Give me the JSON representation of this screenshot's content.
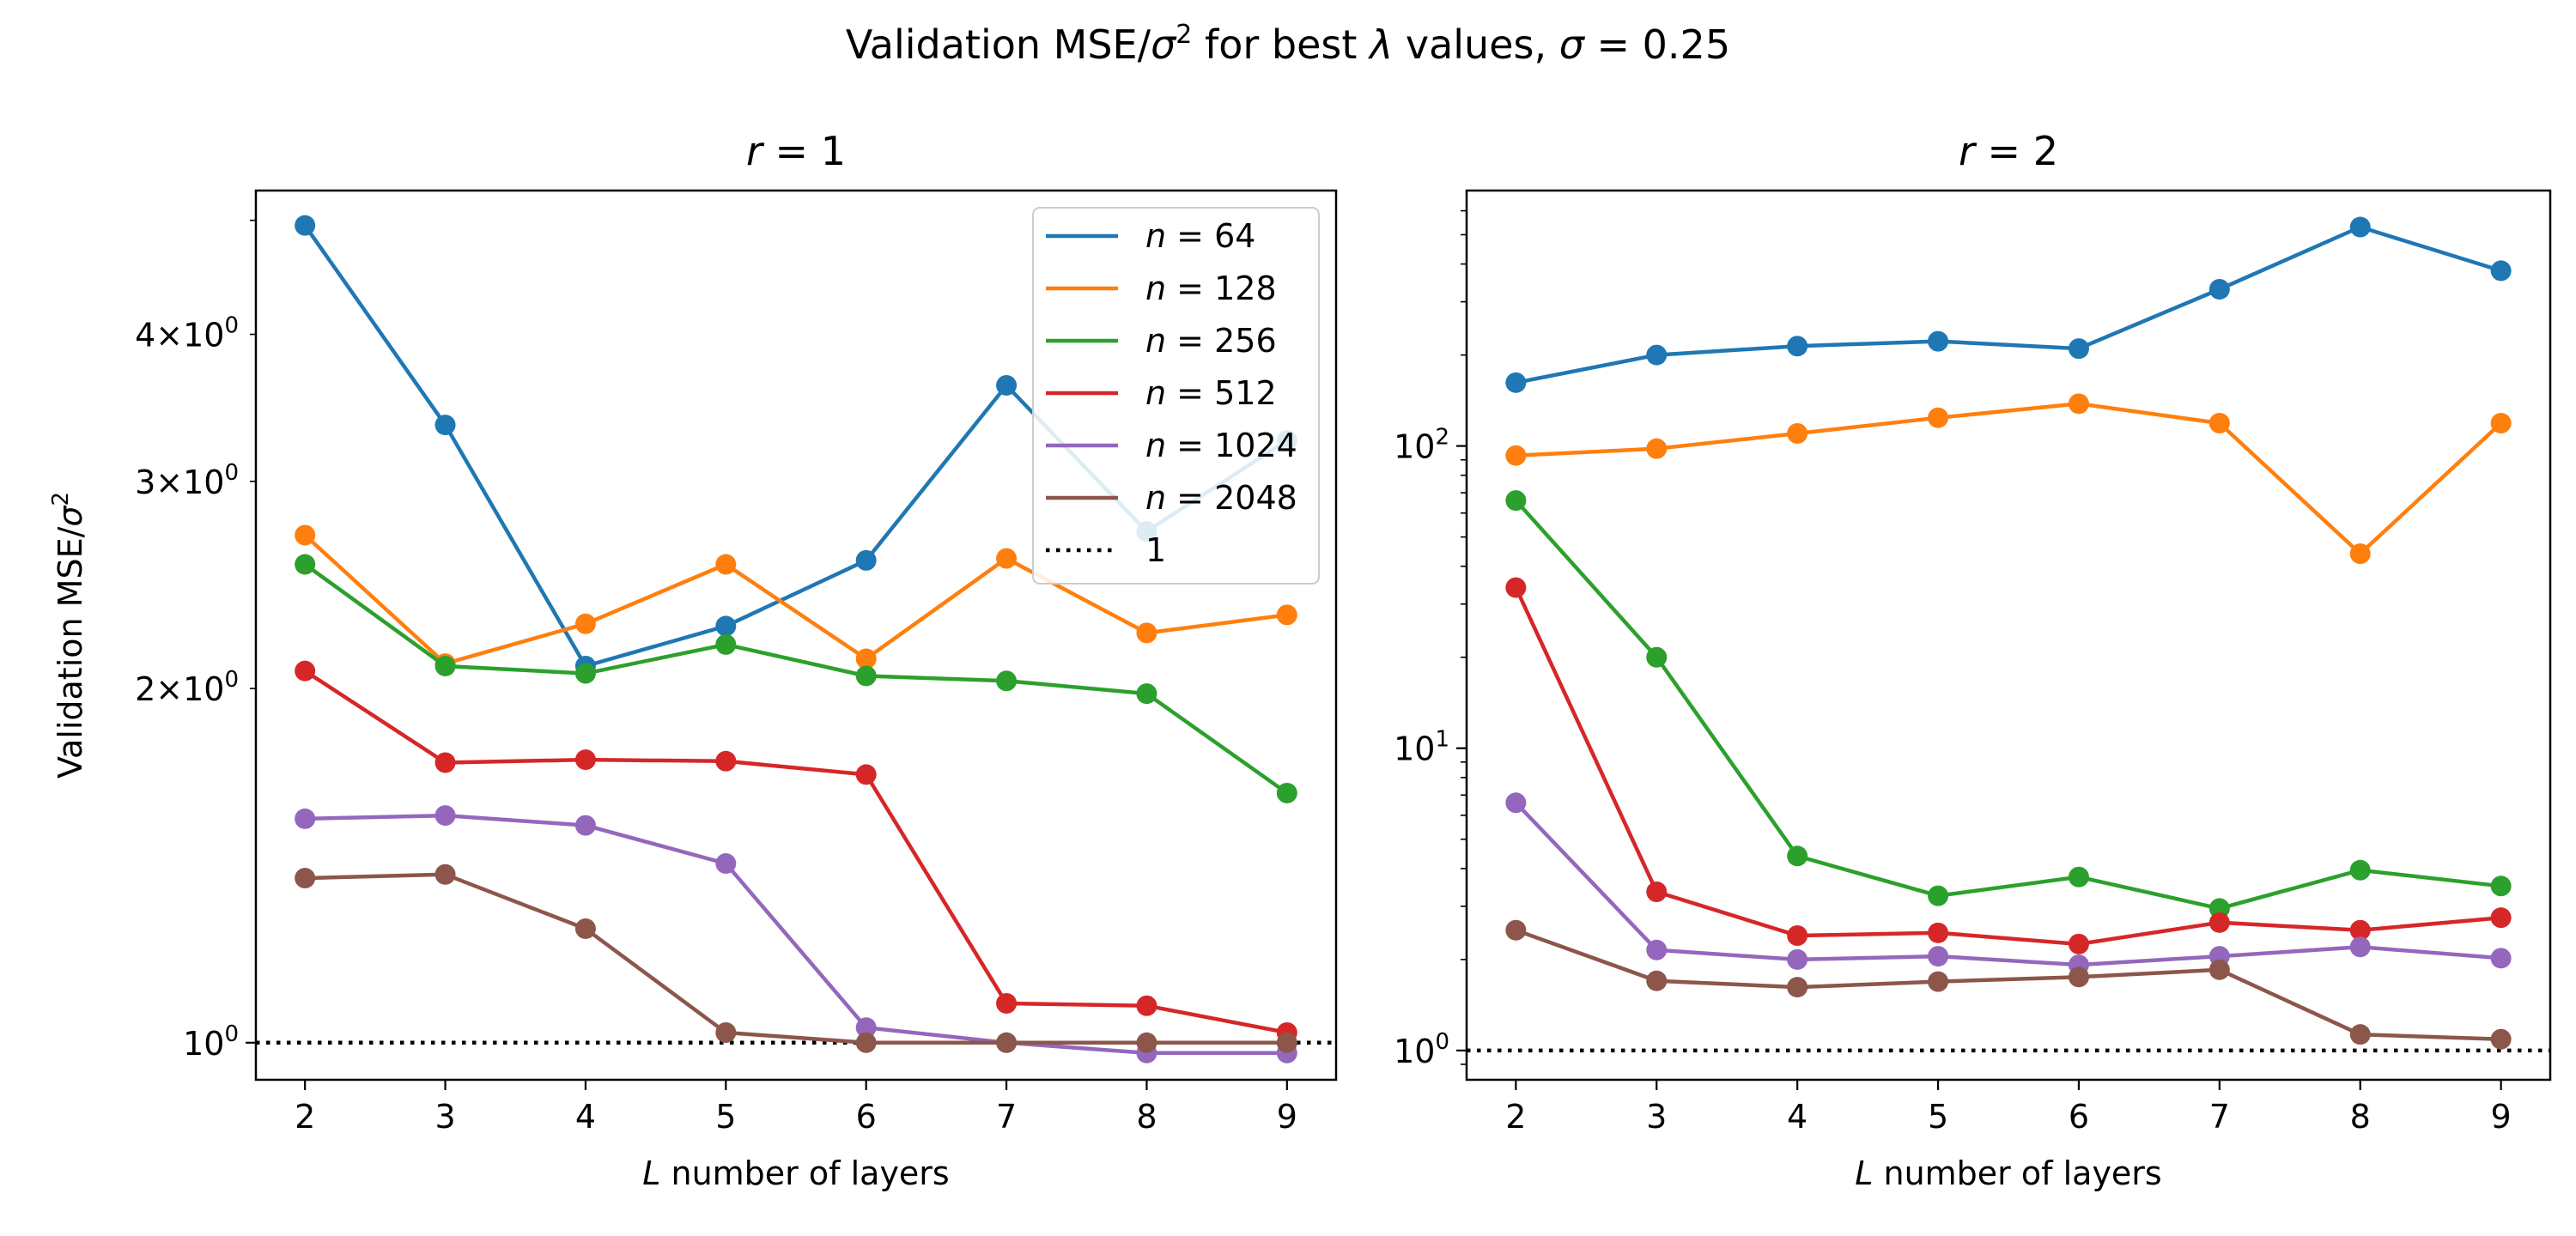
{
  "figure": {
    "suptitle": {
      "pre": "Validation MSE/",
      "sigma": "σ",
      "sq": "2",
      "mid": " for best ",
      "lambda": "λ",
      "post": " values, ",
      "sigma2": "σ",
      "eq": " = 0.25"
    },
    "ylabel": {
      "pre": "Validation MSE/",
      "sigma": "σ",
      "sq": "2"
    }
  },
  "legend": {
    "entries": [
      "n = 64",
      "n = 128",
      "n = 256",
      "n = 512",
      "n = 1024",
      "n = 2048",
      "1"
    ]
  },
  "chart_data": [
    {
      "type": "line",
      "title": "r = 1",
      "xlabel": "L number of layers",
      "ylabel": "Validation MSE/σ²",
      "yscale": "log",
      "x": [
        2,
        3,
        4,
        5,
        6,
        7,
        8,
        9
      ],
      "xlim": [
        1.65,
        9.35
      ],
      "ylim": [
        0.93,
        5.3
      ],
      "major_yticks": [
        {
          "value": 1,
          "label": "10^0"
        }
      ],
      "minor_yticks": [
        {
          "value": 2,
          "label": "2×10^0"
        },
        {
          "value": 3,
          "label": "3×10^0"
        },
        {
          "value": 4,
          "label": "4×10^0"
        }
      ],
      "yticks_unlabeled": [
        5
      ],
      "series": [
        {
          "name": "n = 64",
          "color": "#1f77b4",
          "values": [
            4.95,
            3.35,
            2.09,
            2.26,
            2.57,
            3.62,
            2.72,
            3.25
          ]
        },
        {
          "name": "n = 128",
          "color": "#ff7f0e",
          "values": [
            2.7,
            2.1,
            2.27,
            2.55,
            2.12,
            2.58,
            2.23,
            2.31
          ]
        },
        {
          "name": "n = 256",
          "color": "#2ca02c",
          "values": [
            2.55,
            2.09,
            2.06,
            2.18,
            2.05,
            2.03,
            1.98,
            1.63
          ]
        },
        {
          "name": "n = 512",
          "color": "#d62728",
          "values": [
            2.07,
            1.73,
            1.74,
            1.735,
            1.69,
            1.08,
            1.075,
            1.02
          ]
        },
        {
          "name": "n = 1024",
          "color": "#9467bd",
          "values": [
            1.55,
            1.56,
            1.53,
            1.42,
            1.03,
            1.0,
            0.98,
            0.98
          ]
        },
        {
          "name": "n = 2048",
          "color": "#8c564b",
          "values": [
            1.38,
            1.39,
            1.25,
            1.02,
            1.0,
            1.0,
            1.0,
            1.0
          ]
        }
      ],
      "reference_line": {
        "name": "1",
        "value": 1,
        "style": "dotted",
        "color": "#000000"
      },
      "legend_position": "top-right",
      "grid": false
    },
    {
      "type": "line",
      "title": "r = 2",
      "xlabel": "L number of layers",
      "yscale": "log",
      "x": [
        2,
        3,
        4,
        5,
        6,
        7,
        8,
        9
      ],
      "xlim": [
        1.65,
        9.35
      ],
      "ylim": [
        0.8,
        700
      ],
      "major_yticks": [
        {
          "value": 1,
          "label": "10^0"
        },
        {
          "value": 10,
          "label": "10^1"
        },
        {
          "value": 100,
          "label": "10^2"
        }
      ],
      "series": [
        {
          "name": "n = 64",
          "color": "#1f77b4",
          "values": [
            162,
            200,
            214,
            222,
            210,
            330,
            530,
            380
          ]
        },
        {
          "name": "n = 128",
          "color": "#ff7f0e",
          "values": [
            93,
            98,
            110,
            124,
            138,
            119,
            44,
            119
          ]
        },
        {
          "name": "n = 256",
          "color": "#2ca02c",
          "values": [
            66,
            20,
            4.4,
            3.25,
            3.75,
            2.95,
            3.95,
            3.5
          ]
        },
        {
          "name": "n = 512",
          "color": "#d62728",
          "values": [
            34,
            3.35,
            2.4,
            2.45,
            2.25,
            2.65,
            2.5,
            2.75
          ]
        },
        {
          "name": "n = 1024",
          "color": "#9467bd",
          "values": [
            6.6,
            2.15,
            2.0,
            2.05,
            1.92,
            2.05,
            2.2,
            2.02
          ]
        },
        {
          "name": "n = 2048",
          "color": "#8c564b",
          "values": [
            2.5,
            1.7,
            1.62,
            1.69,
            1.75,
            1.85,
            1.13,
            1.09
          ]
        }
      ],
      "reference_line": {
        "name": "1",
        "value": 1,
        "style": "dotted",
        "color": "#000000"
      },
      "grid": false
    }
  ]
}
